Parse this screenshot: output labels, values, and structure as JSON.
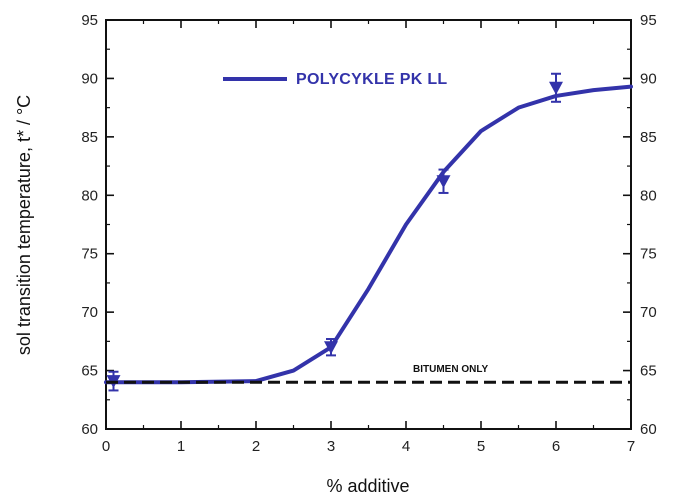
{
  "chart_data": {
    "type": "line",
    "xlabel": "% additive",
    "ylabel": "sol transition temperature, t* / °C",
    "xlim": [
      0,
      7
    ],
    "ylim": [
      60,
      95
    ],
    "x_ticks": [
      0,
      1,
      2,
      3,
      4,
      5,
      6,
      7
    ],
    "y_ticks": [
      60,
      65,
      70,
      75,
      80,
      85,
      90,
      95
    ],
    "secondary_y_axis": true,
    "grid": false,
    "legend_position": "top-left",
    "colors": {
      "series": "#3333aa",
      "reference": "#111111",
      "axis": "#111111"
    },
    "series": [
      {
        "name": "POLYCYKLE PK LL",
        "style": "solid-line-with-down-triangle-markers-and-error-bars",
        "points": [
          {
            "x": 0.1,
            "y": 64.1,
            "err": 0.8
          },
          {
            "x": 3.0,
            "y": 67.0,
            "err": 0.7
          },
          {
            "x": 4.5,
            "y": 81.2,
            "err": 1.0
          },
          {
            "x": 6.0,
            "y": 89.2,
            "err": 1.2
          }
        ],
        "fit_curve": [
          [
            0.0,
            64.0
          ],
          [
            1.0,
            64.0
          ],
          [
            2.0,
            64.1
          ],
          [
            2.5,
            65.0
          ],
          [
            3.0,
            67.0
          ],
          [
            3.5,
            72.0
          ],
          [
            4.0,
            77.5
          ],
          [
            4.5,
            82.0
          ],
          [
            5.0,
            85.5
          ],
          [
            5.5,
            87.5
          ],
          [
            6.0,
            88.5
          ],
          [
            6.5,
            89.0
          ],
          [
            7.0,
            89.3
          ]
        ]
      }
    ],
    "reference_line": {
      "label": "BITUMEN ONLY",
      "y": 64.0,
      "style": "dashed"
    }
  }
}
